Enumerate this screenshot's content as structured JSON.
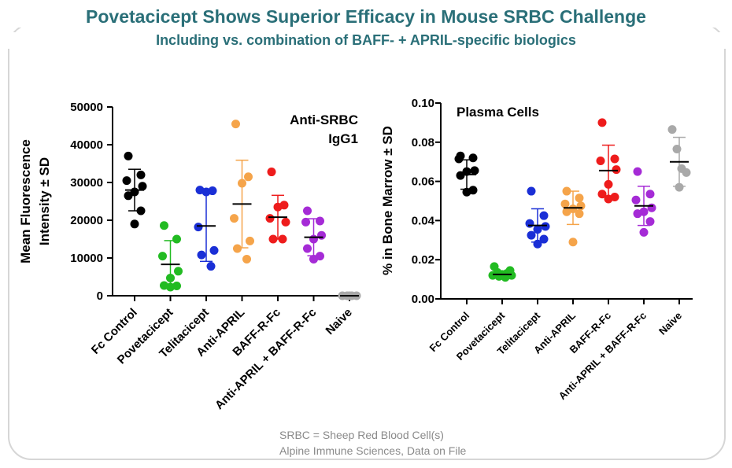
{
  "header": {
    "title": "Povetacicept Shows Superior Efficacy in Mouse SRBC Challenge",
    "subtitle": "Including  vs. combination  of BAFF- + APRIL-specific  biologics"
  },
  "footnotes": {
    "line1": "SRBC = Sheep Red Blood Cell(s)",
    "line2": "Alpine Immune Sciences, Data on File"
  },
  "chart_data": [
    {
      "type": "scatter",
      "title": "Anti-SRBC IgG1",
      "title_lines": [
        "Anti-SRBC",
        "IgG1"
      ],
      "ylabel_lines": [
        "Mean Fluorescence",
        "Intensity ± SD"
      ],
      "ylim": [
        0,
        50000
      ],
      "yticks": [
        0,
        10000,
        20000,
        30000,
        40000,
        50000
      ],
      "ytick_labels": [
        "0",
        "10000",
        "20000",
        "30000",
        "40000",
        "50000"
      ],
      "categories": [
        "Fc Control",
        "Povetacicept",
        "Telitacicept",
        "Anti-APRIL",
        "BAFF-R-Fc",
        "Anti-APRIL + BAFF-R-Fc",
        "Naive"
      ],
      "colors": [
        "#000000",
        "#22bb22",
        "#1a2fd6",
        "#f5a44a",
        "#ee1c1c",
        "#a52bd6",
        "#a9a9a9"
      ],
      "series": [
        {
          "name": "Fc Control",
          "mean": 28000,
          "sd": 5500,
          "points": [
            37000,
            32000,
            30500,
            29000,
            27500,
            26500,
            22500,
            19000
          ]
        },
        {
          "name": "Povetacicept",
          "mean": 8300,
          "sd": 6300,
          "points": [
            18600,
            15000,
            10500,
            6500,
            4700,
            2700,
            2600,
            2300
          ]
        },
        {
          "name": "Telitacicept",
          "mean": 18500,
          "sd": 9400,
          "points": [
            28000,
            27800,
            27500,
            18200,
            12000,
            10800,
            7800
          ]
        },
        {
          "name": "Anti-APRIL",
          "mean": 24300,
          "sd": 11600,
          "points": [
            45500,
            31500,
            29800,
            20500,
            14500,
            12500,
            9700
          ]
        },
        {
          "name": "BAFF-R-Fc",
          "mean": 20800,
          "sd": 5800,
          "points": [
            32800,
            24000,
            23500,
            20500,
            19500,
            15000,
            15000
          ]
        },
        {
          "name": "Anti-APRIL + BAFF-R-Fc",
          "mean": 15500,
          "sd": 4900,
          "points": [
            22500,
            19800,
            19500,
            16000,
            15000,
            12500,
            10500,
            9700
          ]
        },
        {
          "name": "Naive",
          "mean": 0,
          "sd": 0,
          "points": [
            0,
            0,
            0,
            0,
            0
          ]
        }
      ]
    },
    {
      "type": "scatter",
      "title": "Plasma Cells",
      "title_lines": [
        "Plasma Cells"
      ],
      "ylabel_lines": [
        "% in Bone Marrow ± SD"
      ],
      "ylim": [
        0,
        0.1
      ],
      "yticks": [
        0,
        0.02,
        0.04,
        0.06,
        0.08,
        0.1
      ],
      "ytick_labels": [
        "0.00",
        "0.02",
        "0.04",
        "0.06",
        "0.08",
        "0.10"
      ],
      "categories": [
        "Fc Control",
        "Povetacicept",
        "Telitacicept",
        "Anti-APRIL",
        "BAFF-R-Fc",
        "Anti-APRIL + BAFF-R-Fc",
        "Naive"
      ],
      "colors": [
        "#000000",
        "#22bb22",
        "#1a2fd6",
        "#f5a44a",
        "#ee1c1c",
        "#a52bd6",
        "#a9a9a9"
      ],
      "series": [
        {
          "name": "Fc Control",
          "mean": 0.0635,
          "sd": 0.0075,
          "points": [
            0.073,
            0.072,
            0.0715,
            0.0655,
            0.065,
            0.063,
            0.0555,
            0.0545
          ]
        },
        {
          "name": "Povetacicept",
          "mean": 0.0125,
          "sd": 0.0015,
          "points": [
            0.0165,
            0.0145,
            0.0135,
            0.013,
            0.0125,
            0.012,
            0.012,
            0.0115,
            0.011
          ]
        },
        {
          "name": "Telitacicept",
          "mean": 0.0375,
          "sd": 0.0085,
          "points": [
            0.055,
            0.0425,
            0.0385,
            0.037,
            0.0355,
            0.0325,
            0.0305,
            0.028
          ]
        },
        {
          "name": "Anti-APRIL",
          "mean": 0.0465,
          "sd": 0.0085,
          "points": [
            0.055,
            0.0515,
            0.0485,
            0.0475,
            0.046,
            0.0445,
            0.0435,
            0.029
          ]
        },
        {
          "name": "BAFF-R-Fc",
          "mean": 0.0655,
          "sd": 0.013,
          "points": [
            0.09,
            0.0715,
            0.0705,
            0.066,
            0.0585,
            0.0535,
            0.052,
            0.051
          ]
        },
        {
          "name": "Anti-APRIL + BAFF-R-Fc",
          "mean": 0.0475,
          "sd": 0.01,
          "points": [
            0.065,
            0.0535,
            0.0505,
            0.0465,
            0.0445,
            0.0435,
            0.0395,
            0.034
          ]
        },
        {
          "name": "Naive",
          "mean": 0.07,
          "sd": 0.0125,
          "points": [
            0.0865,
            0.0765,
            0.0665,
            0.0645,
            0.057
          ]
        }
      ]
    }
  ]
}
